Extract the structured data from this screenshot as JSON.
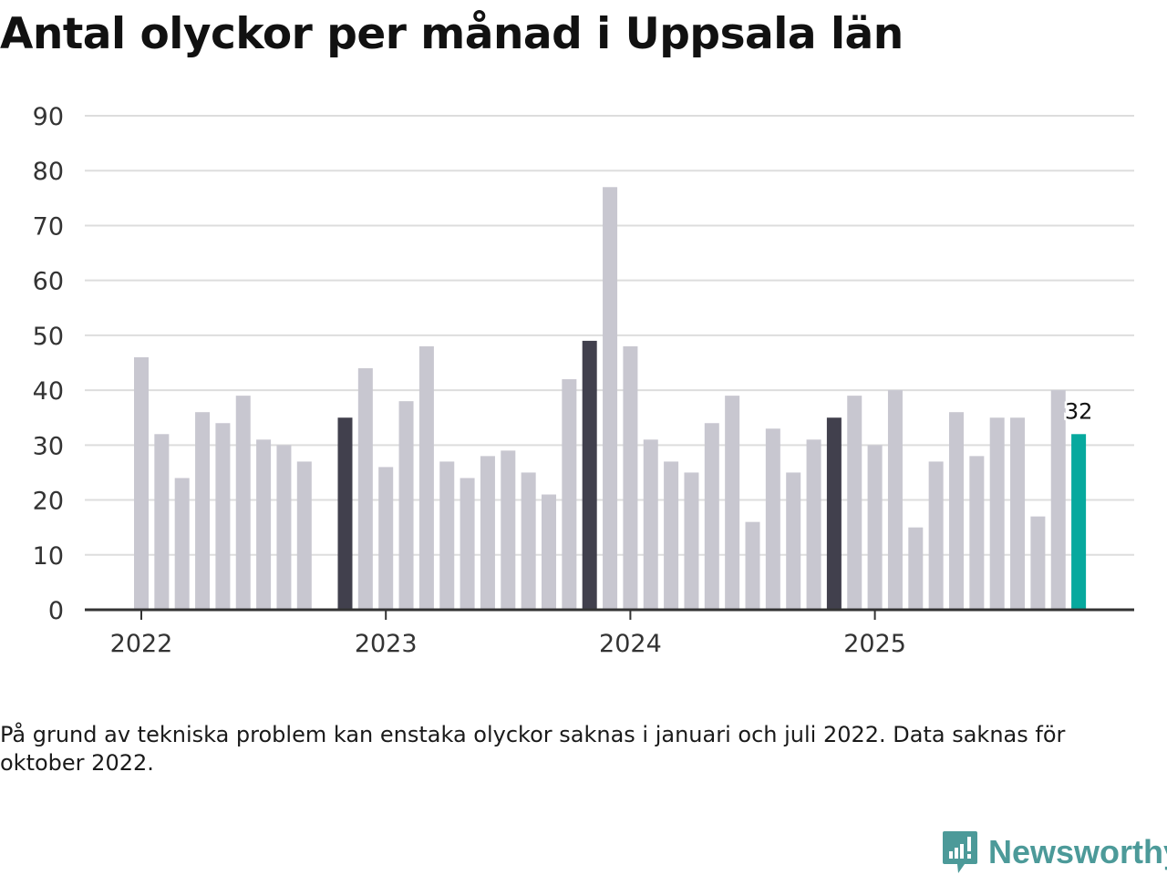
{
  "title": "Antal olyckor per månad i Uppsala län",
  "footnote": "På grund av tekniska problem kan enstaka olyckor saknas i januari och juli 2022. Data saknas för oktober 2022.",
  "brand": {
    "name": "Newsworthy",
    "icon": "newsworthy-logo-icon"
  },
  "colors": {
    "bar": "#c8c7d0",
    "highlight_month": "#41404d",
    "latest": "#07a99e",
    "grid": "#dddddd",
    "axis": "#333333",
    "tick_text": "#333333"
  },
  "chart_data": {
    "type": "bar",
    "title": "Antal olyckor per månad i Uppsala län",
    "xlabel": "",
    "ylabel": "",
    "ylim": [
      0,
      90
    ],
    "yticks": [
      0,
      10,
      20,
      30,
      40,
      50,
      60,
      70,
      80,
      90
    ],
    "grid": true,
    "x_start": "2022-01",
    "year_labels": [
      "2022",
      "2023",
      "2024",
      "2025"
    ],
    "values": [
      46,
      32,
      24,
      36,
      34,
      39,
      31,
      30,
      27,
      null,
      35,
      44,
      26,
      38,
      48,
      27,
      24,
      28,
      29,
      25,
      21,
      42,
      49,
      77,
      48,
      31,
      27,
      25,
      34,
      39,
      16,
      33,
      25,
      31,
      35,
      39,
      30,
      40,
      15,
      27,
      36,
      28,
      35,
      35,
      17,
      40,
      32
    ],
    "highlight_indices": [
      10,
      22,
      34
    ],
    "latest_index": 46,
    "annotation": {
      "index": 46,
      "text": "32"
    }
  }
}
